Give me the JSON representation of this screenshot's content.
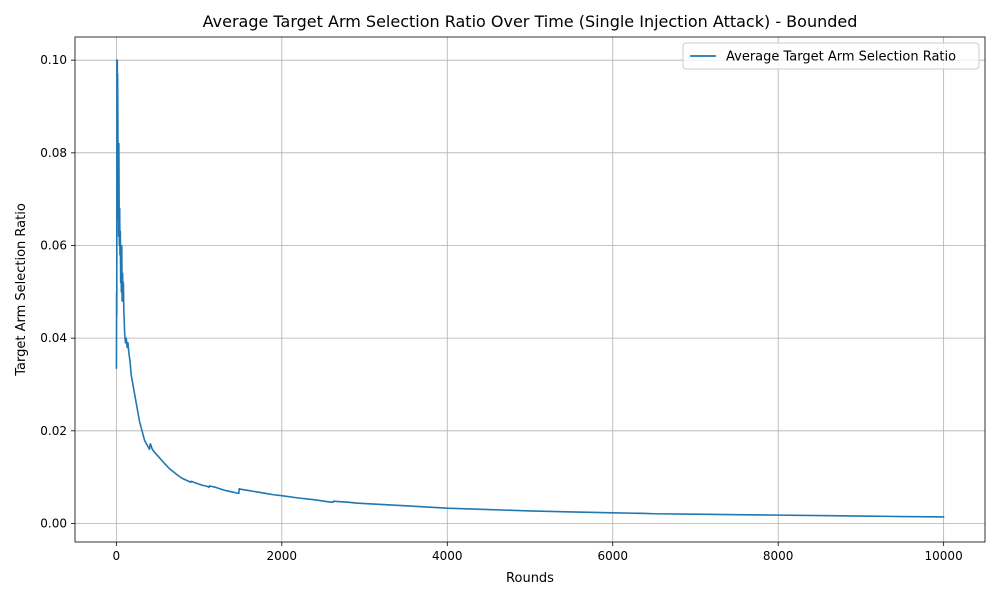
{
  "chart_data": {
    "type": "line",
    "title": "Average Target Arm Selection Ratio Over Time (Single Injection Attack) - Bounded",
    "xlabel": "Rounds",
    "ylabel": "Target Arm Selection Ratio",
    "xlim": [
      -500,
      10500
    ],
    "ylim": [
      -0.004,
      0.105
    ],
    "xticks": [
      0,
      2000,
      4000,
      6000,
      8000,
      10000
    ],
    "xtick_labels": [
      "0",
      "2000",
      "4000",
      "6000",
      "8000",
      "10000"
    ],
    "yticks": [
      0.0,
      0.02,
      0.04,
      0.06,
      0.08,
      0.1
    ],
    "ytick_labels": [
      "0.00",
      "0.02",
      "0.04",
      "0.06",
      "0.08",
      "0.10"
    ],
    "grid": true,
    "legend": "top-right",
    "series": [
      {
        "name": "Average Target Arm Selection Ratio",
        "color": "#1f77b4",
        "x": [
          1,
          3,
          5,
          7,
          9,
          11,
          13,
          15,
          18,
          21,
          24,
          27,
          30,
          33,
          36,
          40,
          44,
          48,
          52,
          56,
          60,
          65,
          70,
          75,
          80,
          85,
          90,
          95,
          100,
          110,
          120,
          130,
          140,
          150,
          165,
          180,
          200,
          220,
          250,
          280,
          310,
          340,
          370,
          400,
          410,
          420,
          430,
          450,
          480,
          520,
          560,
          600,
          650,
          700,
          750,
          800,
          850,
          900,
          905,
          950,
          1000,
          1050,
          1100,
          1120,
          1125,
          1150,
          1200,
          1250,
          1300,
          1350,
          1400,
          1450,
          1480,
          1485,
          1500,
          1600,
          1700,
          1800,
          1900,
          2000,
          2200,
          2400,
          2550,
          2600,
          2620,
          2625,
          2700,
          2800,
          2900,
          3000,
          3200,
          3500,
          4000,
          4500,
          5000,
          5500,
          6000,
          6300,
          6350,
          6500,
          7000,
          7500,
          8000,
          8500,
          9000,
          9500,
          10000
        ],
        "y": [
          0.0335,
          0.05,
          0.045,
          0.1,
          0.097,
          0.1,
          0.083,
          0.097,
          0.088,
          0.066,
          0.075,
          0.062,
          0.082,
          0.07,
          0.06,
          0.068,
          0.058,
          0.063,
          0.052,
          0.057,
          0.05,
          0.06,
          0.048,
          0.054,
          0.049,
          0.052,
          0.046,
          0.044,
          0.041,
          0.039,
          0.04,
          0.038,
          0.039,
          0.037,
          0.035,
          0.032,
          0.03,
          0.028,
          0.025,
          0.022,
          0.02,
          0.018,
          0.017,
          0.016,
          0.0172,
          0.0168,
          0.0162,
          0.0156,
          0.015,
          0.0142,
          0.0134,
          0.0126,
          0.0117,
          0.011,
          0.0103,
          0.0097,
          0.0093,
          0.0089,
          0.0091,
          0.0088,
          0.0085,
          0.0082,
          0.008,
          0.0078,
          0.0081,
          0.008,
          0.0078,
          0.0075,
          0.0072,
          0.007,
          0.0068,
          0.0066,
          0.0065,
          0.0075,
          0.0074,
          0.0071,
          0.0068,
          0.0065,
          0.0062,
          0.006,
          0.0055,
          0.0051,
          0.0047,
          0.0046,
          0.0046,
          0.0048,
          0.0047,
          0.0046,
          0.0044,
          0.0043,
          0.0041,
          0.0038,
          0.0033,
          0.003,
          0.0027,
          0.0025,
          0.0023,
          0.0022,
          0.0022,
          0.0021,
          0.002,
          0.0019,
          0.0018,
          0.0017,
          0.0016,
          0.0015,
          0.0014
        ]
      }
    ]
  }
}
